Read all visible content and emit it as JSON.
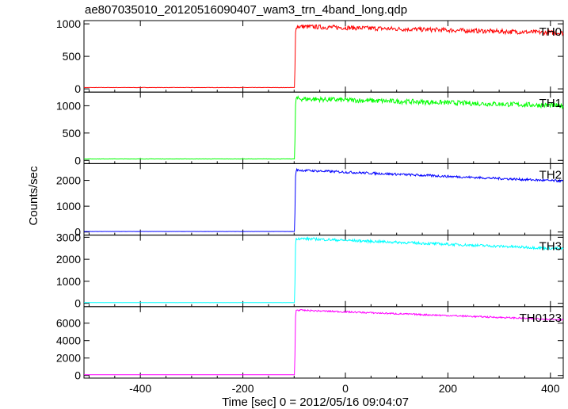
{
  "title": "ae807035010_20120516090407_wam3_trn_4band_long.qdp",
  "ylabel": "Counts/sec",
  "xlabel": "Time [sec] 0 = 2012/05/16 09:04:07",
  "chart_data": {
    "type": "line",
    "title": "ae807035010_20120516090407_wam3_trn_4band_long.qdp",
    "xlabel": "Time [sec] 0 = 2012/05/16 09:04:07",
    "ylabel": "Counts/sec",
    "xlim": [
      -510,
      425
    ],
    "x_ticks": [
      -400,
      -200,
      0,
      200,
      400
    ],
    "grid": false,
    "onset_time": -97,
    "series": [
      {
        "name": "TH0",
        "color": "#ff0000",
        "ylim": [
          -50,
          1050
        ],
        "y_ticks": [
          0,
          500,
          1000
        ],
        "pre_level": 20,
        "peak_level": 960,
        "end_level": 860,
        "noise": 35
      },
      {
        "name": "TH1",
        "color": "#00ff00",
        "ylim": [
          -60,
          1250
        ],
        "y_ticks": [
          0,
          500,
          1000
        ],
        "pre_level": 25,
        "peak_level": 1130,
        "end_level": 1000,
        "noise": 45
      },
      {
        "name": "TH2",
        "color": "#0000ff",
        "ylim": [
          -120,
          2650
        ],
        "y_ticks": [
          0,
          1000,
          2000
        ],
        "pre_level": 20,
        "peak_level": 2400,
        "end_level": 1970,
        "noise": 45
      },
      {
        "name": "TH3",
        "color": "#00ffff",
        "ylim": [
          -150,
          3100
        ],
        "y_ticks": [
          0,
          1000,
          2000,
          3000
        ],
        "pre_level": 30,
        "peak_level": 2950,
        "end_level": 2480,
        "noise": 60
      },
      {
        "name": "TH0123",
        "color": "#ff00ff",
        "ylim": [
          -300,
          7900
        ],
        "y_ticks": [
          0,
          2000,
          4000,
          6000
        ],
        "pre_level": 80,
        "peak_level": 7500,
        "end_level": 6400,
        "noise": 90
      }
    ]
  }
}
